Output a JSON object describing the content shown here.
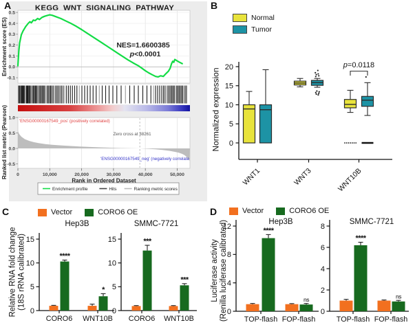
{
  "panels": {
    "A": {
      "label": "A"
    },
    "B": {
      "label": "B",
      "ylabel": "Normalized expression",
      "legend": [
        {
          "label": "Normal",
          "color_key": "normal"
        },
        {
          "label": "Tumor",
          "color_key": "tumor"
        }
      ]
    },
    "C": {
      "label": "C",
      "ylabel_line1": "Relative RNA fold change",
      "ylabel_line2": "(18S rRNA calibrated)",
      "legend": [
        {
          "label": "Vector",
          "color_key": "vector"
        },
        {
          "label": "CORO6 OE",
          "color_key": "coro6_oe"
        }
      ]
    },
    "D": {
      "label": "D",
      "ylabel_line1": "Luciferase activity",
      "ylabel_line2": "(Renilla luciferase calibrated)",
      "legend": [
        {
          "label": "Vector",
          "color_key": "vector"
        },
        {
          "label": "CORO6 OE",
          "color_key": "coro6_oe"
        }
      ]
    }
  },
  "colors": {
    "vector": "#f2701f",
    "coro6_oe": "#176a1f",
    "normal": "#e8e33c",
    "tumor": "#1d93a5",
    "gsea_line": "#12dc45",
    "hits_dark": "#1c1c1c",
    "hits_light": "#9a9a9a",
    "rank_area": "#bdbdbd",
    "pos_text": "#e04545",
    "neg_text": "#3434c8",
    "box_stroke": "#2b2b2b",
    "gradient_stops": [
      [
        0,
        "#c50f0f"
      ],
      [
        0.3,
        "#d84040"
      ],
      [
        0.45,
        "#eb9090"
      ],
      [
        0.55,
        "#f2cccc"
      ],
      [
        0.62,
        "#e4e4f0"
      ],
      [
        0.75,
        "#b9b9e8"
      ],
      [
        0.87,
        "#7d7dd8"
      ],
      [
        0.95,
        "#3a3ac0"
      ],
      [
        1,
        "#1212a0"
      ]
    ]
  },
  "chart_data": [
    {
      "id": "gsea",
      "type": "line",
      "panel": "A",
      "title": "KEGG_WNT_SIGNALING_PATHWAY",
      "ylabel": "Enrichment score (ES)",
      "ylabel2": "Ranked list metric (Pearson)",
      "xlabel": "Rank in Ordered Dataset",
      "annotations": {
        "nes": "NES=1.6600385",
        "p": "p<0.0001",
        "zero_cross": "Zero cross at 38261",
        "pos_label": "'ENSG00000167549_pos' (positively correlated)",
        "neg_label": "'ENSG00000167549_neg' (negatively correlate"
      },
      "es_ticks": [
        0.5,
        0.4,
        0.3,
        0.2,
        0.1,
        0.0,
        -0.1
      ],
      "rank_ticks": [
        1.0,
        0.5,
        0.0,
        -0.5
      ],
      "x_max": 54000,
      "x_ticks": [
        0,
        10000,
        20000,
        30000,
        40000,
        50000
      ],
      "x_tick_labels": [
        "0",
        "10,000",
        "20,000",
        "30,000",
        "40,000",
        "50,000"
      ],
      "zero_cross_rank": 38261,
      "es_curve": [
        [
          0,
          0.01
        ],
        [
          0.005,
          0.14
        ],
        [
          0.01,
          0.22
        ],
        [
          0.02,
          0.295
        ],
        [
          0.03,
          0.33
        ],
        [
          0.045,
          0.37
        ],
        [
          0.06,
          0.4
        ],
        [
          0.07,
          0.415
        ],
        [
          0.078,
          0.405
        ],
        [
          0.09,
          0.43
        ],
        [
          0.1,
          0.425
        ],
        [
          0.115,
          0.445
        ],
        [
          0.125,
          0.435
        ],
        [
          0.14,
          0.455
        ],
        [
          0.155,
          0.465
        ],
        [
          0.17,
          0.472
        ],
        [
          0.185,
          0.478
        ],
        [
          0.2,
          0.474
        ],
        [
          0.22,
          0.462
        ],
        [
          0.25,
          0.444
        ],
        [
          0.28,
          0.421
        ],
        [
          0.31,
          0.398
        ],
        [
          0.34,
          0.372
        ],
        [
          0.37,
          0.343
        ],
        [
          0.4,
          0.312
        ],
        [
          0.43,
          0.281
        ],
        [
          0.46,
          0.25
        ],
        [
          0.49,
          0.219
        ],
        [
          0.52,
          0.188
        ],
        [
          0.55,
          0.157
        ],
        [
          0.58,
          0.126
        ],
        [
          0.61,
          0.095
        ],
        [
          0.64,
          0.064
        ],
        [
          0.67,
          0.036
        ],
        [
          0.7,
          0.01
        ],
        [
          0.72,
          -0.012
        ],
        [
          0.74,
          -0.035
        ],
        [
          0.76,
          -0.055
        ],
        [
          0.78,
          -0.072
        ],
        [
          0.8,
          -0.088
        ],
        [
          0.815,
          -0.092
        ],
        [
          0.83,
          -0.082
        ],
        [
          0.845,
          -0.088
        ],
        [
          0.86,
          -0.063
        ],
        [
          0.875,
          -0.04
        ],
        [
          0.885,
          -0.012
        ],
        [
          0.893,
          0.03
        ],
        [
          0.9,
          0.052
        ],
        [
          0.906,
          0.042
        ],
        [
          0.912,
          0.068
        ],
        [
          0.925,
          0.055
        ],
        [
          0.94,
          0.042
        ],
        [
          0.955,
          0.03
        ]
      ],
      "rank_metric": [
        [
          0,
          0.56
        ],
        [
          0.008,
          0.46
        ],
        [
          0.02,
          0.38
        ],
        [
          0.04,
          0.3
        ],
        [
          0.065,
          0.245
        ],
        [
          0.09,
          0.205
        ],
        [
          0.12,
          0.17
        ],
        [
          0.16,
          0.14
        ],
        [
          0.2,
          0.118
        ],
        [
          0.25,
          0.097
        ],
        [
          0.3,
          0.079
        ],
        [
          0.36,
          0.061
        ],
        [
          0.42,
          0.047
        ],
        [
          0.48,
          0.033
        ],
        [
          0.54,
          0.022
        ],
        [
          0.6,
          0.012
        ],
        [
          0.66,
          0.004
        ],
        [
          0.709,
          0
        ],
        [
          0.75,
          -0.012
        ],
        [
          0.8,
          -0.03
        ],
        [
          0.84,
          -0.05
        ],
        [
          0.88,
          -0.078
        ],
        [
          0.91,
          -0.108
        ],
        [
          0.935,
          -0.14
        ],
        [
          0.955,
          -0.178
        ],
        [
          0.97,
          -0.222
        ],
        [
          0.982,
          -0.285
        ],
        [
          0.992,
          -0.36
        ],
        [
          0.997,
          -0.4
        ]
      ],
      "hits_frac": [
        0.004,
        0.009,
        0.013,
        0.016,
        0.02,
        0.024,
        0.027,
        0.031,
        0.034,
        0.039,
        0.045,
        0.05,
        0.054,
        0.058,
        0.063,
        0.068,
        0.072,
        0.078,
        0.084,
        0.09,
        0.096,
        0.101,
        0.106,
        0.112,
        0.118,
        0.124,
        0.13,
        0.137,
        0.143,
        0.149,
        0.155,
        0.162,
        0.17,
        0.177,
        0.184,
        0.19,
        0.197,
        0.205,
        0.213,
        0.22,
        0.228,
        0.236,
        0.245,
        0.254,
        0.263,
        0.273,
        0.283,
        0.294,
        0.305,
        0.317,
        0.33,
        0.343,
        0.357,
        0.372,
        0.388,
        0.404,
        0.42,
        0.437,
        0.455,
        0.473,
        0.49,
        0.51,
        0.53,
        0.552,
        0.575,
        0.6,
        0.625,
        0.65,
        0.676,
        0.7,
        0.726,
        0.75,
        0.773,
        0.788,
        0.8,
        0.812,
        0.824,
        0.836,
        0.846,
        0.855,
        0.864,
        0.872,
        0.88,
        0.888,
        0.895,
        0.902,
        0.909,
        0.916,
        0.923,
        0.93,
        0.937,
        0.944,
        0.951,
        0.958,
        0.965,
        0.972,
        0.98
      ],
      "legend": [
        {
          "label": "Enrichment profile",
          "color": "#12dc45"
        },
        {
          "label": "Hits",
          "color": "#444444"
        },
        {
          "label": "Ranking metric scores",
          "color": "#bbbbbb"
        }
      ]
    },
    {
      "id": "wnt_expression",
      "type": "box",
      "panel": "B",
      "ylabel": "Normalized expression",
      "ylim": [
        0,
        20
      ],
      "yticks": [
        0,
        5,
        10,
        15,
        20
      ],
      "categories": [
        "WNT1",
        "WNT3",
        "WNT10B"
      ],
      "groups": [
        {
          "name": "Normal",
          "color_key": "normal"
        },
        {
          "name": "Tumor",
          "color_key": "tumor"
        }
      ],
      "boxes": [
        {
          "category": "WNT1",
          "group": "Normal",
          "q1": 0,
          "median": 8.9,
          "q3": 10.0,
          "lo": 0,
          "hi": 13.5,
          "outliers": []
        },
        {
          "category": "WNT1",
          "group": "Tumor",
          "q1": 0,
          "median": 8.7,
          "q3": 10.0,
          "lo": 0,
          "hi": 19.2,
          "outliers": []
        },
        {
          "category": "WNT3",
          "group": "Normal",
          "q1": 15.2,
          "median": 15.7,
          "q3": 16.2,
          "lo": 14.7,
          "hi": 16.9,
          "outliers": []
        },
        {
          "category": "WNT3",
          "group": "Tumor",
          "q1": 15.1,
          "median": 15.8,
          "q3": 16.4,
          "lo": 14.6,
          "hi": 16.9,
          "outliers": [
            17.4,
            17.6,
            17.9,
            18.1,
            18.4,
            19.0,
            13.6,
            13.4,
            13.2,
            13.0,
            12.8,
            12.6
          ]
        },
        {
          "category": "WNT10B",
          "group": "Normal",
          "q1": 9.2,
          "median": 10.1,
          "q3": 11.4,
          "lo": 8.0,
          "hi": 13.8,
          "outliers": [],
          "zero_marker": "dotted"
        },
        {
          "category": "WNT10B",
          "group": "Tumor",
          "q1": 9.6,
          "median": 11.2,
          "q3": 12.2,
          "lo": 7.2,
          "hi": 15.8,
          "outliers": [
            17.3
          ],
          "zero_marker": "solid"
        }
      ],
      "significance": {
        "category": "WNT10B",
        "text": "p=0.0118"
      }
    },
    {
      "id": "rna_hep3b",
      "type": "bar",
      "panel": "C",
      "subtitle": "Hep3B",
      "categories": [
        "CORO6",
        "WNT10B"
      ],
      "series": [
        {
          "name": "Vector",
          "color_key": "vector",
          "values": [
            1.0,
            1.0
          ],
          "errors": [
            0.1,
            0.35
          ]
        },
        {
          "name": "CORO6 OE",
          "color_key": "coro6_oe",
          "values": [
            10.3,
            3.0
          ],
          "errors": [
            0.3,
            0.55
          ]
        }
      ],
      "sig": [
        "****",
        "*"
      ],
      "ylim": [
        0,
        15
      ],
      "yticks": [
        0,
        5,
        10,
        15
      ]
    },
    {
      "id": "rna_smmc",
      "type": "bar",
      "panel": "C",
      "subtitle": "SMMC-7721",
      "categories": [
        "CORO6",
        "WNT10B"
      ],
      "series": [
        {
          "name": "Vector",
          "color_key": "vector",
          "values": [
            0.95,
            0.95
          ],
          "errors": [
            0.1,
            0.1
          ]
        },
        {
          "name": "CORO6 OE",
          "color_key": "coro6_oe",
          "values": [
            12.6,
            5.3
          ],
          "errors": [
            1.1,
            0.35
          ]
        }
      ],
      "sig": [
        "***",
        "***"
      ],
      "ylim": [
        0,
        15
      ],
      "yticks": [
        0,
        5,
        10,
        15
      ]
    },
    {
      "id": "luc_hep3b",
      "type": "bar",
      "panel": "D",
      "subtitle": "Hep3B",
      "categories": [
        "TOP-flash",
        "FOP-flash"
      ],
      "series": [
        {
          "name": "Vector",
          "color_key": "vector",
          "values": [
            1.0,
            1.0
          ],
          "errors": [
            0.1,
            0.08
          ]
        },
        {
          "name": "CORO6 OE",
          "color_key": "coro6_oe",
          "values": [
            10.3,
            0.95
          ],
          "errors": [
            0.5,
            0.15
          ]
        }
      ],
      "sig": [
        "****",
        "ns"
      ],
      "ylim": [
        0,
        12
      ],
      "yticks": [
        0,
        4,
        8,
        12
      ]
    },
    {
      "id": "luc_smmc",
      "type": "bar",
      "panel": "D",
      "subtitle": "SMMC-7721",
      "categories": [
        "TOP-flash",
        "FOP-flash"
      ],
      "series": [
        {
          "name": "Vector",
          "color_key": "vector",
          "values": [
            1.0,
            1.0
          ],
          "errors": [
            0.12,
            0.06
          ]
        },
        {
          "name": "CORO6 OE",
          "color_key": "coro6_oe",
          "values": [
            6.2,
            0.92
          ],
          "errors": [
            0.28,
            0.1
          ]
        }
      ],
      "sig": [
        "****",
        "ns"
      ],
      "ylim": [
        0,
        8
      ],
      "yticks": [
        0,
        2,
        4,
        6,
        8
      ]
    }
  ]
}
